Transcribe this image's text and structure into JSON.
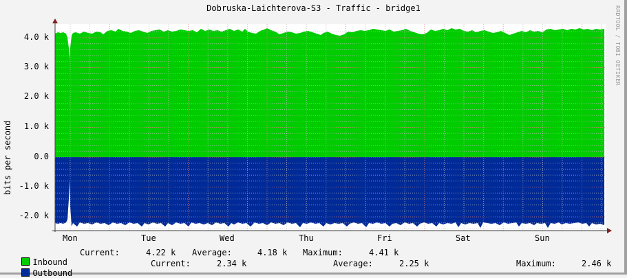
{
  "title": "Dobruska-Laichterova-S3 - Traffic - bridge1",
  "watermark": "RRDTOOL / TOBI OETIKER",
  "colors": {
    "inbound": "#00cc00",
    "outbound": "#002a97",
    "background": "#f3f3f3",
    "grid_major": "#e08080",
    "grid_minor": "#c0c0c0",
    "axis": "#404040",
    "arrow": "#802020"
  },
  "legend": {
    "inbound": {
      "name": "Inbound",
      "current_label": "Current:",
      "current": "4.22 k",
      "average_label": "Average:",
      "average": "4.18 k",
      "maximum_label": "Maximum:",
      "maximum": "4.41 k"
    },
    "outbound": {
      "name": "Outbound",
      "current_label": "Current:",
      "current": "2.34 k",
      "average_label": "Average:",
      "average": "2.25 k",
      "maximum_label": "Maximum:",
      "maximum": "2.46 k"
    }
  },
  "chart_data": {
    "type": "area",
    "title": "Dobruska-Laichterova-S3 - Traffic - bridge1",
    "xlabel": "",
    "ylabel": "bits per second",
    "categories": [
      "Mon",
      "Tue",
      "Wed",
      "Thu",
      "Fri",
      "Sat",
      "Sun"
    ],
    "y_ticks": [
      "4.0 k",
      "3.0 k",
      "2.0 k",
      "1.0 k",
      "0.0",
      "-1.0 k",
      "-2.0 k"
    ],
    "ylim": [
      -2400,
      4500
    ],
    "grid": true,
    "legend_position": "bottom",
    "series": [
      {
        "name": "Inbound",
        "color": "#00cc00",
        "direction": "positive",
        "values": [
          4150,
          3350,
          4180,
          4120,
          4200,
          4180,
          4250,
          4220,
          4200,
          4150,
          4220,
          4180,
          4200,
          4250,
          4150,
          4200,
          4230,
          4300,
          4250,
          4220,
          4250,
          4300,
          4280,
          4220
        ],
        "current": 4220,
        "average": 4180,
        "maximum": 4410
      },
      {
        "name": "Outbound",
        "color": "#002a97",
        "direction": "negative",
        "values": [
          -2300,
          -750,
          -2300,
          -2280,
          -2300,
          -2290,
          -2300,
          -2280,
          -2300,
          -2300,
          -2290,
          -2300,
          -2280,
          -2300,
          -2300,
          -2290,
          -2300,
          -2300,
          -2290,
          -2300,
          -2300,
          -2290,
          -2300,
          -2340
        ],
        "current": -2340,
        "average": -2250,
        "maximum": -2460
      }
    ]
  }
}
